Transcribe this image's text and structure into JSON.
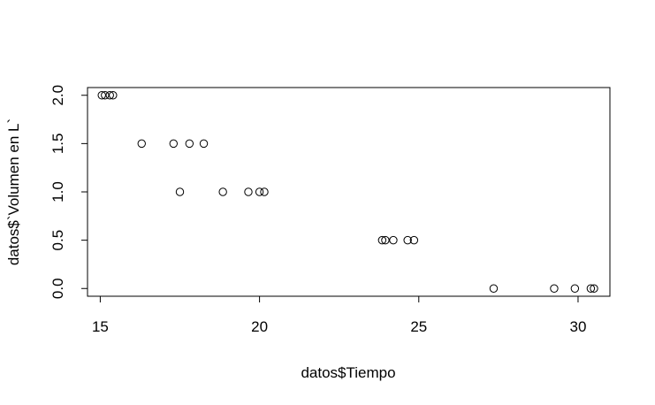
{
  "chart_data": {
    "type": "scatter",
    "xlabel": "datos$Tiempo",
    "ylabel": "datos$`Volumen en L`",
    "xlim": [
      14.6,
      31.0
    ],
    "ylim": [
      -0.08,
      2.08
    ],
    "x_ticks": [
      15,
      20,
      25,
      30
    ],
    "y_ticks": [
      0.0,
      0.5,
      1.0,
      1.5,
      2.0
    ],
    "x_tick_labels": [
      "15",
      "20",
      "25",
      "30"
    ],
    "y_tick_labels": [
      "0.0",
      "0.5",
      "1.0",
      "1.5",
      "2.0"
    ],
    "grid": false,
    "marker": "open-circle",
    "points": [
      {
        "x": 15.05,
        "y": 2.0
      },
      {
        "x": 15.15,
        "y": 2.0
      },
      {
        "x": 15.3,
        "y": 2.0
      },
      {
        "x": 15.4,
        "y": 2.0
      },
      {
        "x": 16.3,
        "y": 1.5
      },
      {
        "x": 17.3,
        "y": 1.5
      },
      {
        "x": 17.8,
        "y": 1.5
      },
      {
        "x": 18.25,
        "y": 1.5
      },
      {
        "x": 17.5,
        "y": 1.0
      },
      {
        "x": 18.85,
        "y": 1.0
      },
      {
        "x": 19.65,
        "y": 1.0
      },
      {
        "x": 20.0,
        "y": 1.0
      },
      {
        "x": 20.15,
        "y": 1.0
      },
      {
        "x": 23.85,
        "y": 0.5
      },
      {
        "x": 23.95,
        "y": 0.5
      },
      {
        "x": 24.2,
        "y": 0.5
      },
      {
        "x": 24.65,
        "y": 0.5
      },
      {
        "x": 24.85,
        "y": 0.5
      },
      {
        "x": 27.35,
        "y": 0.0
      },
      {
        "x": 29.25,
        "y": 0.0
      },
      {
        "x": 29.9,
        "y": 0.0
      },
      {
        "x": 30.4,
        "y": 0.0
      },
      {
        "x": 30.5,
        "y": 0.0
      }
    ]
  }
}
